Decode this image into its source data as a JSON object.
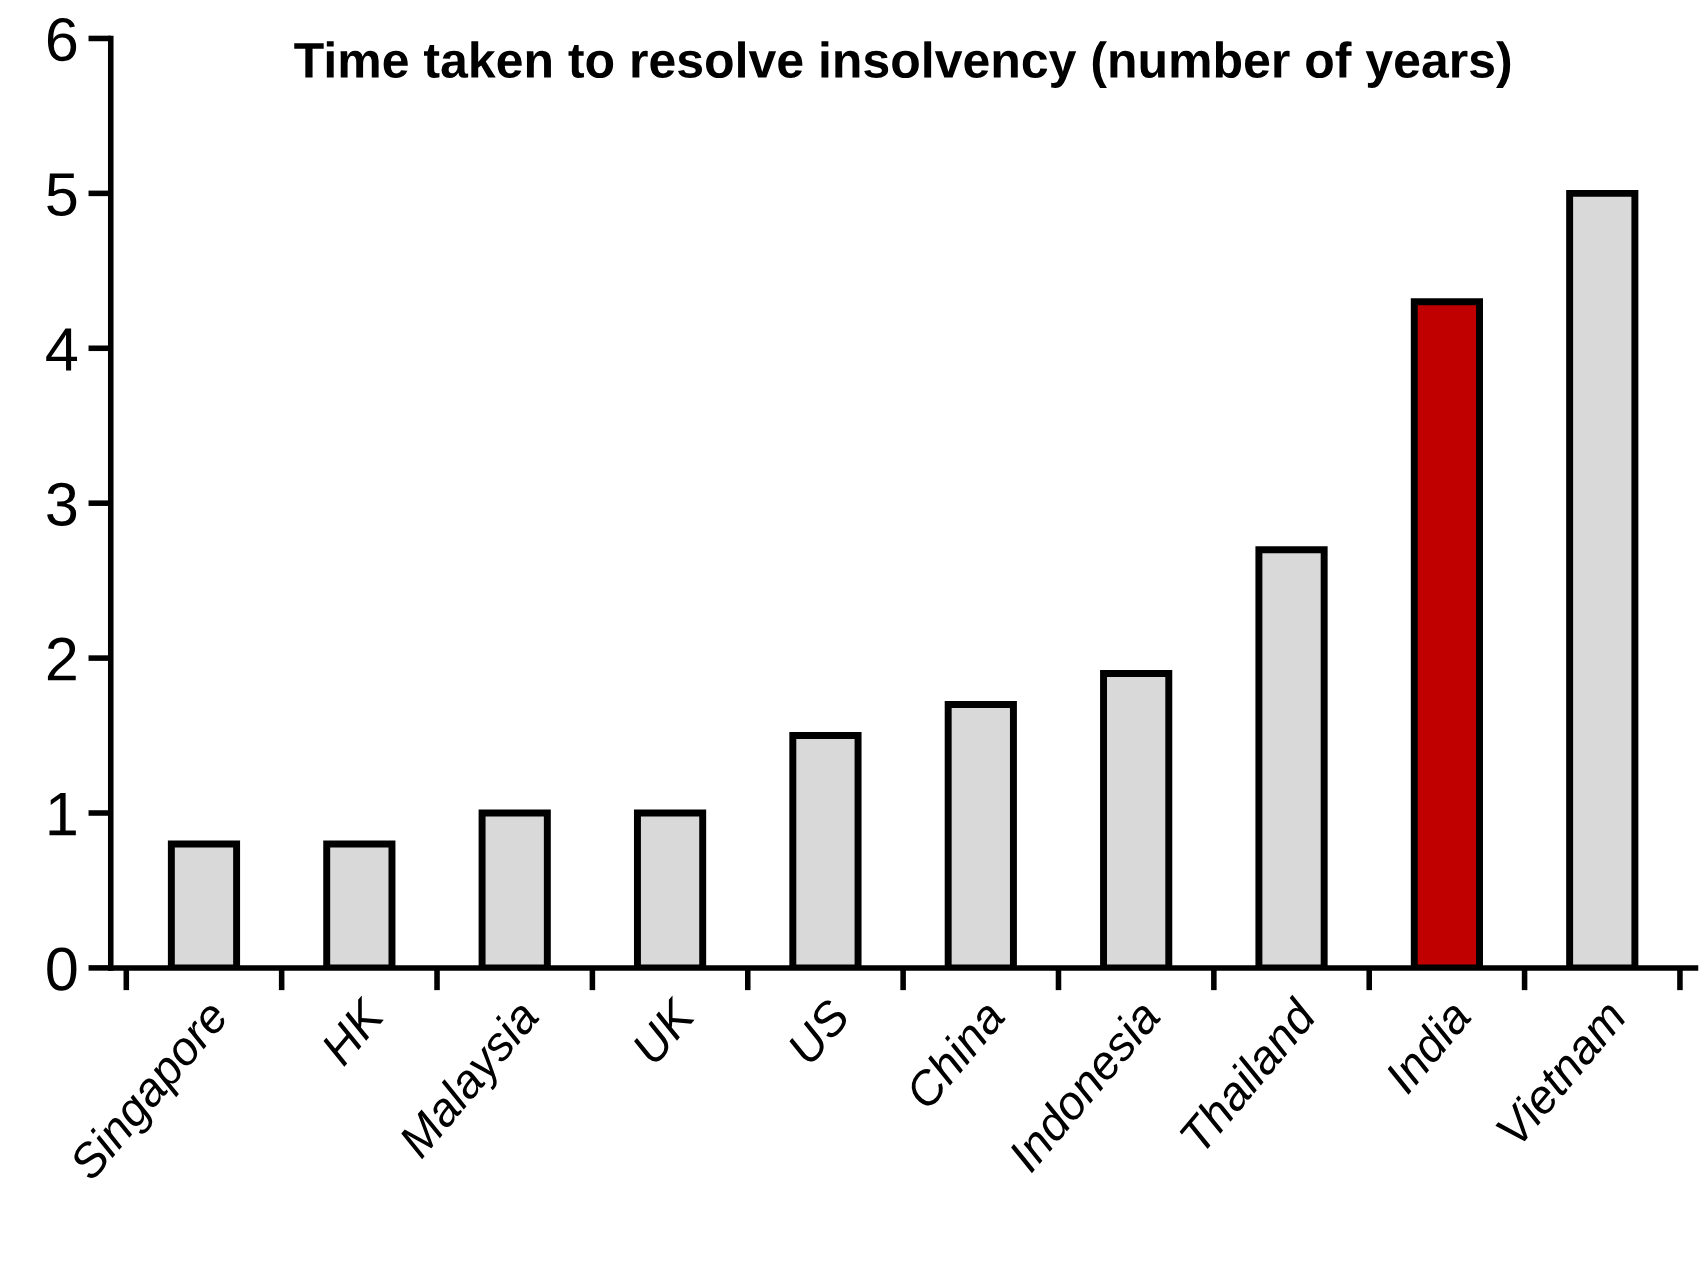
{
  "chart_data": {
    "type": "bar",
    "title": "Time taken to resolve insolvency (number of years)",
    "categories": [
      "Singapore",
      "HK",
      "Malaysia",
      "UK",
      "US",
      "China",
      "Indonesia",
      "Thailand",
      "India",
      "Vietnam"
    ],
    "values": [
      0.8,
      0.8,
      1.0,
      1.0,
      1.5,
      1.7,
      1.9,
      2.7,
      4.3,
      5.0
    ],
    "colors": [
      "#d9d9d9",
      "#d9d9d9",
      "#d9d9d9",
      "#d9d9d9",
      "#d9d9d9",
      "#d9d9d9",
      "#d9d9d9",
      "#d9d9d9",
      "#c00000",
      "#d9d9d9"
    ],
    "ylim": [
      0,
      6
    ],
    "yticks": [
      0,
      1,
      2,
      3,
      4,
      5,
      6
    ],
    "grid": false,
    "legend": false
  }
}
